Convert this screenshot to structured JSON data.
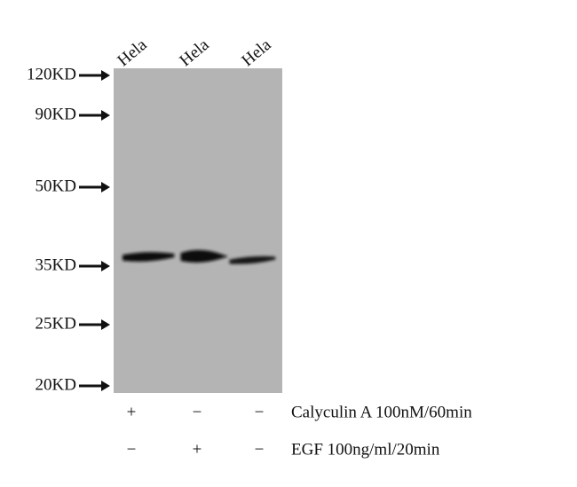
{
  "lanes": [
    "Hela",
    "Hela",
    "Hela"
  ],
  "markers": [
    "120KD",
    "90KD",
    "50KD",
    "35KD",
    "25KD",
    "20KD"
  ],
  "treatments": [
    {
      "name": "Calyculin A 100nM/60min",
      "signs": [
        "+",
        "−",
        "−"
      ]
    },
    {
      "name": "EGF 100ng/ml/20min",
      "signs": [
        "−",
        "+",
        "−"
      ]
    }
  ]
}
